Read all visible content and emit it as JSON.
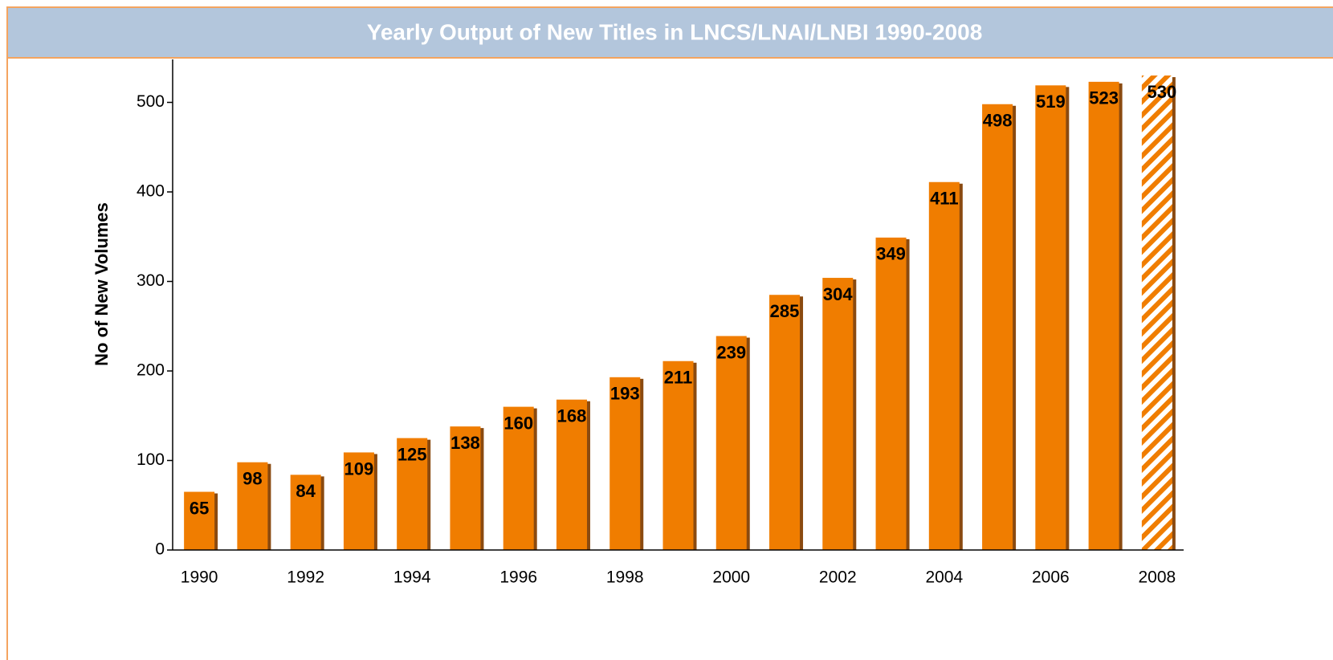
{
  "chart_data": {
    "type": "bar",
    "title": "Yearly Output of New Titles in LNCS/LNAI/LNBI 1990-2008",
    "ylabel": "No of New Volumes",
    "categories": [
      "1990",
      null,
      "1992",
      null,
      "1994",
      null,
      "1996",
      null,
      "1998",
      null,
      "2000",
      null,
      "2002",
      null,
      "2004",
      null,
      "2006",
      null,
      "2008"
    ],
    "values": [
      65,
      98,
      84,
      109,
      125,
      138,
      160,
      168,
      193,
      211,
      239,
      285,
      304,
      349,
      411,
      498,
      519,
      523,
      530
    ],
    "color": "#f07d00",
    "shadow_color": "#8a4a10",
    "hatch_last": true,
    "ylim": [
      0,
      548
    ],
    "yticks": [
      0,
      100,
      200,
      300,
      400,
      500
    ],
    "grid": false
  }
}
